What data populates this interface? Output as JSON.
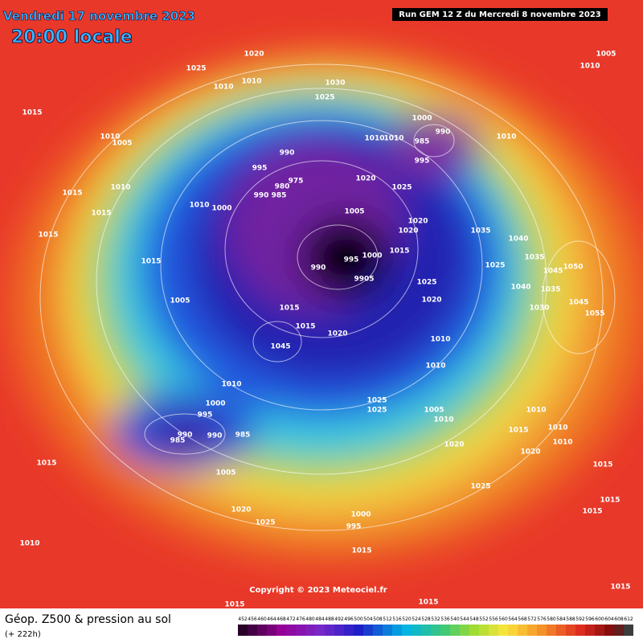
{
  "header": {
    "date": "Vendredi 17 novembre 2023",
    "time": "20:00 locale",
    "run": "Run GEM 12 Z du Mercredi 8 novembre 2023"
  },
  "copyright": "Copyright © 2023 Meteociel.fr",
  "footer": {
    "title": "Géop. Z500 & pression au sol",
    "lead": "(+ 222h)"
  },
  "legend": {
    "values": [
      452,
      456,
      460,
      464,
      468,
      472,
      476,
      480,
      484,
      488,
      492,
      496,
      500,
      504,
      508,
      512,
      516,
      520,
      524,
      528,
      532,
      536,
      540,
      544,
      548,
      552,
      556,
      560,
      564,
      568,
      572,
      576,
      580,
      584,
      588,
      592,
      596,
      600,
      604,
      608,
      612
    ]
  },
  "isobars": {
    "labels": [
      "1020",
      "1025",
      "1010",
      "1010",
      "1030",
      "1025",
      "1015",
      "1010",
      "1005",
      "1010",
      "1015",
      "1015",
      "1015",
      "1015",
      "990",
      "995",
      "975",
      "980",
      "990",
      "985",
      "1010",
      "1000",
      "1005",
      "1020",
      "1025",
      "1020",
      "1020",
      "1015",
      "990",
      "995",
      "1000",
      "9905",
      "1025",
      "1020",
      "1005",
      "1015",
      "1015",
      "1020",
      "1045",
      "1010",
      "1010",
      "1010",
      "1000",
      "995",
      "990",
      "985",
      "990",
      "985",
      "1025",
      "1025",
      "1005",
      "1010",
      "1020",
      "1005",
      "1015",
      "1010",
      "1020",
      "1025",
      "1000",
      "995",
      "1015",
      "1025",
      "1015",
      "1015",
      "1010",
      "1010",
      "990",
      "985",
      "1000",
      "995",
      "1010",
      "1035",
      "1040",
      "1035",
      "1045",
      "1050",
      "1025",
      "1040",
      "1035",
      "1030",
      "1045",
      "1055",
      "1005",
      "1010",
      "1010",
      "1010",
      "1015",
      "1020",
      "1015",
      "1015",
      "1015",
      "1015",
      "1010"
    ]
  }
}
